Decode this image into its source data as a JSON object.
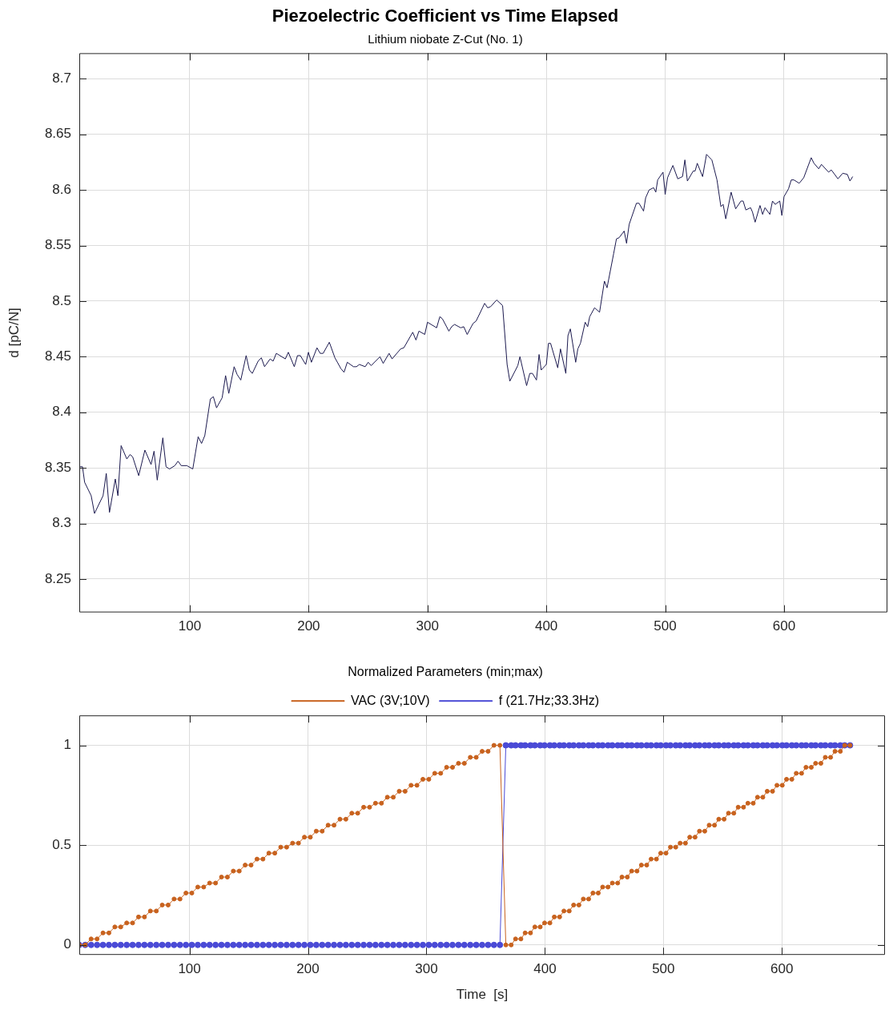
{
  "chart_data": [
    {
      "type": "line",
      "title": "Piezoelectric Coefficient vs Time Elapsed",
      "subtitle": "Lithium niobate Z-Cut (No. 1)",
      "ylabel": "d [pC/N]",
      "x": [
        7,
        9.7,
        11.5,
        17,
        19.8,
        27,
        29.7,
        32.4,
        37.3,
        39.5,
        42.2,
        47,
        49.7,
        51.9,
        57,
        62.2,
        67.4,
        69.9,
        72.6,
        77.3,
        80,
        82.9,
        87.4,
        90.1,
        92.8,
        97.5,
        102.5,
        107,
        109.9,
        112.6,
        117.3,
        119.8,
        122.5,
        127.2,
        130.1,
        132.8,
        137.3,
        139.8,
        142.9,
        147.4,
        150.1,
        152.6,
        157.5,
        160.2,
        162.9,
        167.6,
        170.1,
        172.8,
        180.4,
        182.9,
        187.9,
        190.6,
        193,
        197.5,
        199.8,
        202.3,
        207,
        209.7,
        212.2,
        217.4,
        222.1,
        227.3,
        229.8,
        232.5,
        237.7,
        240.2,
        242.7,
        247.6,
        250.1,
        252.6,
        260,
        262.7,
        267.7,
        270.2,
        277.4,
        280.1,
        287.6,
        290.3,
        292.8,
        297.7,
        300,
        307.7,
        310.4,
        312.6,
        318,
        320.3,
        322.8,
        328,
        330.5,
        333.4,
        338.4,
        340.9,
        348.1,
        350.6,
        353.1,
        358.2,
        363.2,
        367,
        369.3,
        376,
        377.8,
        383.4,
        386.1,
        388.3,
        391.7,
        393.9,
        395.7,
        400,
        401.8,
        403.6,
        409.6,
        411.9,
        416.4,
        418.2,
        420.2,
        424.7,
        426.5,
        428.7,
        432.7,
        434.8,
        436.5,
        440.6,
        444.8,
        448.9,
        451.1,
        456.7,
        459,
        461.2,
        465.5,
        467.5,
        469.7,
        475.8,
        478,
        481.8,
        483.6,
        486.5,
        490.3,
        492.1,
        493.7,
        498.2,
        500,
        502,
        506.5,
        510.6,
        514.6,
        516.6,
        518.7,
        523.6,
        525.2,
        527,
        531.5,
        534.8,
        539.3,
        543.6,
        546.9,
        548.8,
        551,
        555.5,
        559.3,
        563.8,
        565.6,
        567.9,
        571.9,
        573.5,
        575.7,
        579.8,
        582,
        584,
        588.1,
        590.3,
        592.6,
        596.4,
        598.2,
        600,
        603.8,
        606.1,
        608.3,
        612.8,
        616.6,
        622.9,
        625.2,
        629.2,
        631.5,
        637.5,
        639.8,
        645.4,
        649.4,
        653.3,
        655.5,
        657.8
      ],
      "series": [
        {
          "color": "#1c1a4f",
          "values": [
            8.351,
            8.351,
            8.337,
            8.325,
            8.309,
            8.325,
            8.345,
            8.31,
            8.34,
            8.325,
            8.37,
            8.358,
            8.362,
            8.36,
            8.343,
            8.366,
            8.353,
            8.365,
            8.339,
            8.377,
            8.351,
            8.349,
            8.352,
            8.356,
            8.352,
            8.352,
            8.349,
            8.378,
            8.372,
            8.379,
            8.412,
            8.414,
            8.404,
            8.413,
            8.433,
            8.417,
            8.441,
            8.434,
            8.429,
            8.451,
            8.438,
            8.435,
            8.446,
            8.449,
            8.441,
            8.448,
            8.446,
            8.453,
            8.448,
            8.454,
            8.441,
            8.451,
            8.451,
            8.443,
            8.454,
            8.445,
            8.458,
            8.453,
            8.453,
            8.463,
            8.449,
            8.439,
            8.436,
            8.445,
            8.441,
            8.441,
            8.443,
            8.441,
            8.445,
            8.442,
            8.45,
            8.444,
            8.453,
            8.448,
            8.457,
            8.458,
            8.472,
            8.465,
            8.473,
            8.47,
            8.481,
            8.476,
            8.486,
            8.484,
            8.473,
            8.477,
            8.479,
            8.476,
            8.477,
            8.47,
            8.48,
            8.482,
            8.498,
            8.494,
            8.495,
            8.501,
            8.496,
            8.443,
            8.428,
            8.442,
            8.45,
            8.424,
            8.435,
            8.435,
            8.429,
            8.452,
            8.438,
            8.443,
            8.462,
            8.462,
            8.44,
            8.457,
            8.435,
            8.469,
            8.475,
            8.445,
            8.457,
            8.462,
            8.481,
            8.477,
            8.486,
            8.494,
            8.49,
            8.518,
            8.512,
            8.543,
            8.556,
            8.557,
            8.563,
            8.552,
            8.569,
            8.588,
            8.588,
            8.581,
            8.593,
            8.6,
            8.602,
            8.598,
            8.609,
            8.616,
            8.596,
            8.611,
            8.622,
            8.61,
            8.612,
            8.627,
            8.608,
            8.617,
            8.617,
            8.624,
            8.612,
            8.632,
            8.627,
            8.609,
            8.585,
            8.587,
            8.574,
            8.598,
            8.583,
            8.59,
            8.59,
            8.582,
            8.584,
            8.58,
            8.571,
            8.586,
            8.578,
            8.584,
            8.578,
            8.59,
            8.587,
            8.59,
            8.577,
            8.594,
            8.601,
            8.609,
            8.609,
            8.606,
            8.611,
            8.629,
            8.624,
            8.619,
            8.623,
            8.616,
            8.618,
            8.61,
            8.615,
            8.614,
            8.608,
            8.612
          ]
        }
      ],
      "xlim": [
        7,
        687
      ],
      "xticks": [
        100,
        200,
        300,
        400,
        500,
        600
      ],
      "ylim": [
        8.22,
        8.723
      ],
      "yticks": [
        8.25,
        8.3,
        8.35,
        8.4,
        8.45,
        8.5,
        8.55,
        8.6,
        8.65,
        8.7
      ],
      "grid": true
    },
    {
      "type": "line",
      "title": "Normalized Parameters (min;max)",
      "xlabel": "Time  [s]",
      "legend": "top",
      "marker": "circle",
      "x": [
        7,
        12,
        17,
        22,
        27,
        32,
        37,
        42,
        47,
        52,
        57,
        62,
        67,
        72,
        77,
        82,
        87,
        92,
        97,
        102,
        107,
        112,
        117,
        122,
        127,
        132,
        137,
        142,
        147,
        152,
        157,
        162,
        167,
        172,
        177,
        182,
        187,
        192,
        197,
        202,
        207,
        212,
        217,
        222,
        227,
        232,
        237,
        242,
        247,
        252,
        257,
        262,
        267,
        272,
        277,
        282,
        287,
        292,
        297,
        302,
        307,
        312,
        317,
        322,
        327,
        332,
        337,
        342,
        347,
        352,
        357,
        362,
        367,
        371.5,
        375.2,
        379.7,
        383.3,
        387.8,
        391.5,
        396,
        399.7,
        404.2,
        407.9,
        412.4,
        416,
        420.5,
        424.2,
        428.7,
        432.4,
        436.9,
        440.5,
        445,
        448.7,
        453.2,
        456.9,
        461.4,
        465,
        469.5,
        473.2,
        477.7,
        481.4,
        485.9,
        489.6,
        494.1,
        497.7,
        502.2,
        505.9,
        510.4,
        514.1,
        518.6,
        522.2,
        526.7,
        530.4,
        534.9,
        538.6,
        543.1,
        546.7,
        551.2,
        554.9,
        559.4,
        563.1,
        567.6,
        571.3,
        575.8,
        579.4,
        583.9,
        587.6,
        592.1,
        595.8,
        600.3,
        603.9,
        608.4,
        612.1,
        616.6,
        620.3,
        624.8,
        628.4,
        632.9,
        636.6,
        641.1,
        644.8,
        649.3,
        653,
        657.5
      ],
      "series": [
        {
          "name": "f (21.7Hz;33.3Hz)",
          "color": "#4a4ad6",
          "values": [
            0,
            0,
            0,
            0,
            0,
            0,
            0,
            0,
            0,
            0,
            0,
            0,
            0,
            0,
            0,
            0,
            0,
            0,
            0,
            0,
            0,
            0,
            0,
            0,
            0,
            0,
            0,
            0,
            0,
            0,
            0,
            0,
            0,
            0,
            0,
            0,
            0,
            0,
            0,
            0,
            0,
            0,
            0,
            0,
            0,
            0,
            0,
            0,
            0,
            0,
            0,
            0,
            0,
            0,
            0,
            0,
            0,
            0,
            0,
            0,
            0,
            0,
            0,
            0,
            0,
            0,
            0,
            0,
            0,
            0,
            0,
            0,
            1,
            1,
            1,
            1,
            1,
            1,
            1,
            1,
            1,
            1,
            1,
            1,
            1,
            1,
            1,
            1,
            1,
            1,
            1,
            1,
            1,
            1,
            1,
            1,
            1,
            1,
            1,
            1,
            1,
            1,
            1,
            1,
            1,
            1,
            1,
            1,
            1,
            1,
            1,
            1,
            1,
            1,
            1,
            1,
            1,
            1,
            1,
            1,
            1,
            1,
            1,
            1,
            1,
            1,
            1,
            1,
            1,
            1,
            1,
            1,
            1,
            1,
            1,
            1,
            1,
            1,
            1,
            1,
            1,
            1,
            1,
            1
          ]
        },
        {
          "name": "VAC (3V;10V)",
          "color": "#c8621e",
          "values": [
            0,
            0,
            0.03,
            0.03,
            0.06,
            0.06,
            0.09,
            0.09,
            0.11,
            0.11,
            0.14,
            0.14,
            0.17,
            0.17,
            0.2,
            0.2,
            0.23,
            0.23,
            0.26,
            0.26,
            0.29,
            0.29,
            0.31,
            0.31,
            0.34,
            0.34,
            0.37,
            0.37,
            0.4,
            0.4,
            0.43,
            0.43,
            0.46,
            0.46,
            0.49,
            0.49,
            0.51,
            0.51,
            0.54,
            0.54,
            0.57,
            0.57,
            0.6,
            0.6,
            0.63,
            0.63,
            0.66,
            0.66,
            0.69,
            0.69,
            0.71,
            0.71,
            0.74,
            0.74,
            0.77,
            0.77,
            0.8,
            0.8,
            0.83,
            0.83,
            0.86,
            0.86,
            0.89,
            0.89,
            0.91,
            0.91,
            0.94,
            0.94,
            0.97,
            0.97,
            1,
            1,
            0,
            0,
            0.03,
            0.03,
            0.06,
            0.06,
            0.09,
            0.09,
            0.11,
            0.11,
            0.14,
            0.14,
            0.17,
            0.17,
            0.2,
            0.2,
            0.23,
            0.23,
            0.26,
            0.26,
            0.29,
            0.29,
            0.31,
            0.31,
            0.34,
            0.34,
            0.37,
            0.37,
            0.4,
            0.4,
            0.43,
            0.43,
            0.46,
            0.46,
            0.49,
            0.49,
            0.51,
            0.51,
            0.54,
            0.54,
            0.57,
            0.57,
            0.6,
            0.6,
            0.63,
            0.63,
            0.66,
            0.66,
            0.69,
            0.69,
            0.71,
            0.71,
            0.74,
            0.74,
            0.77,
            0.77,
            0.8,
            0.8,
            0.83,
            0.83,
            0.86,
            0.86,
            0.89,
            0.89,
            0.91,
            0.91,
            0.94,
            0.94,
            0.97,
            0.97,
            1,
            1
          ]
        }
      ],
      "xlim": [
        7,
        687
      ],
      "xticks": [
        100,
        200,
        300,
        400,
        500,
        600
      ],
      "ylim": [
        -0.05,
        1.15
      ],
      "yticks": [
        0,
        0.5,
        1
      ],
      "grid": true
    }
  ]
}
